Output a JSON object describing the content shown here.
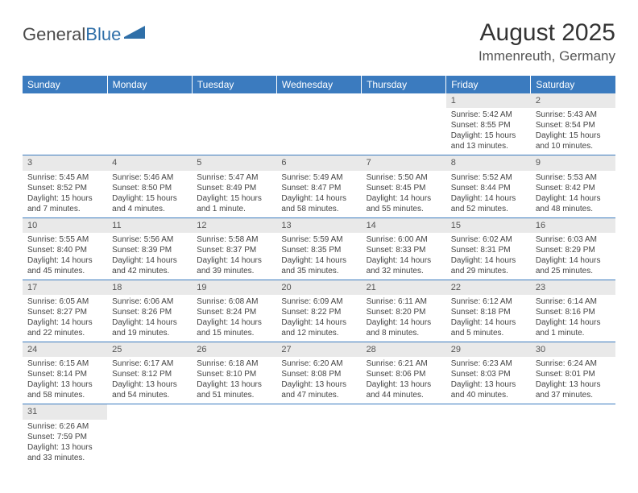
{
  "logo": {
    "text1": "General",
    "text2": "Blue"
  },
  "title": "August 2025",
  "location": "Immenreuth, Germany",
  "colors": {
    "header_bg": "#3b7bbf",
    "header_fg": "#ffffff",
    "daynum_bg": "#e9e9e9",
    "row_border": "#3b7bbf",
    "logo_blue": "#2f6fa8"
  },
  "day_headers": [
    "Sunday",
    "Monday",
    "Tuesday",
    "Wednesday",
    "Thursday",
    "Friday",
    "Saturday"
  ],
  "weeks": [
    [
      null,
      null,
      null,
      null,
      null,
      {
        "n": "1",
        "sr": "Sunrise: 5:42 AM",
        "ss": "Sunset: 8:55 PM",
        "dl": "Daylight: 15 hours and 13 minutes."
      },
      {
        "n": "2",
        "sr": "Sunrise: 5:43 AM",
        "ss": "Sunset: 8:54 PM",
        "dl": "Daylight: 15 hours and 10 minutes."
      }
    ],
    [
      {
        "n": "3",
        "sr": "Sunrise: 5:45 AM",
        "ss": "Sunset: 8:52 PM",
        "dl": "Daylight: 15 hours and 7 minutes."
      },
      {
        "n": "4",
        "sr": "Sunrise: 5:46 AM",
        "ss": "Sunset: 8:50 PM",
        "dl": "Daylight: 15 hours and 4 minutes."
      },
      {
        "n": "5",
        "sr": "Sunrise: 5:47 AM",
        "ss": "Sunset: 8:49 PM",
        "dl": "Daylight: 15 hours and 1 minute."
      },
      {
        "n": "6",
        "sr": "Sunrise: 5:49 AM",
        "ss": "Sunset: 8:47 PM",
        "dl": "Daylight: 14 hours and 58 minutes."
      },
      {
        "n": "7",
        "sr": "Sunrise: 5:50 AM",
        "ss": "Sunset: 8:45 PM",
        "dl": "Daylight: 14 hours and 55 minutes."
      },
      {
        "n": "8",
        "sr": "Sunrise: 5:52 AM",
        "ss": "Sunset: 8:44 PM",
        "dl": "Daylight: 14 hours and 52 minutes."
      },
      {
        "n": "9",
        "sr": "Sunrise: 5:53 AM",
        "ss": "Sunset: 8:42 PM",
        "dl": "Daylight: 14 hours and 48 minutes."
      }
    ],
    [
      {
        "n": "10",
        "sr": "Sunrise: 5:55 AM",
        "ss": "Sunset: 8:40 PM",
        "dl": "Daylight: 14 hours and 45 minutes."
      },
      {
        "n": "11",
        "sr": "Sunrise: 5:56 AM",
        "ss": "Sunset: 8:39 PM",
        "dl": "Daylight: 14 hours and 42 minutes."
      },
      {
        "n": "12",
        "sr": "Sunrise: 5:58 AM",
        "ss": "Sunset: 8:37 PM",
        "dl": "Daylight: 14 hours and 39 minutes."
      },
      {
        "n": "13",
        "sr": "Sunrise: 5:59 AM",
        "ss": "Sunset: 8:35 PM",
        "dl": "Daylight: 14 hours and 35 minutes."
      },
      {
        "n": "14",
        "sr": "Sunrise: 6:00 AM",
        "ss": "Sunset: 8:33 PM",
        "dl": "Daylight: 14 hours and 32 minutes."
      },
      {
        "n": "15",
        "sr": "Sunrise: 6:02 AM",
        "ss": "Sunset: 8:31 PM",
        "dl": "Daylight: 14 hours and 29 minutes."
      },
      {
        "n": "16",
        "sr": "Sunrise: 6:03 AM",
        "ss": "Sunset: 8:29 PM",
        "dl": "Daylight: 14 hours and 25 minutes."
      }
    ],
    [
      {
        "n": "17",
        "sr": "Sunrise: 6:05 AM",
        "ss": "Sunset: 8:27 PM",
        "dl": "Daylight: 14 hours and 22 minutes."
      },
      {
        "n": "18",
        "sr": "Sunrise: 6:06 AM",
        "ss": "Sunset: 8:26 PM",
        "dl": "Daylight: 14 hours and 19 minutes."
      },
      {
        "n": "19",
        "sr": "Sunrise: 6:08 AM",
        "ss": "Sunset: 8:24 PM",
        "dl": "Daylight: 14 hours and 15 minutes."
      },
      {
        "n": "20",
        "sr": "Sunrise: 6:09 AM",
        "ss": "Sunset: 8:22 PM",
        "dl": "Daylight: 14 hours and 12 minutes."
      },
      {
        "n": "21",
        "sr": "Sunrise: 6:11 AM",
        "ss": "Sunset: 8:20 PM",
        "dl": "Daylight: 14 hours and 8 minutes."
      },
      {
        "n": "22",
        "sr": "Sunrise: 6:12 AM",
        "ss": "Sunset: 8:18 PM",
        "dl": "Daylight: 14 hours and 5 minutes."
      },
      {
        "n": "23",
        "sr": "Sunrise: 6:14 AM",
        "ss": "Sunset: 8:16 PM",
        "dl": "Daylight: 14 hours and 1 minute."
      }
    ],
    [
      {
        "n": "24",
        "sr": "Sunrise: 6:15 AM",
        "ss": "Sunset: 8:14 PM",
        "dl": "Daylight: 13 hours and 58 minutes."
      },
      {
        "n": "25",
        "sr": "Sunrise: 6:17 AM",
        "ss": "Sunset: 8:12 PM",
        "dl": "Daylight: 13 hours and 54 minutes."
      },
      {
        "n": "26",
        "sr": "Sunrise: 6:18 AM",
        "ss": "Sunset: 8:10 PM",
        "dl": "Daylight: 13 hours and 51 minutes."
      },
      {
        "n": "27",
        "sr": "Sunrise: 6:20 AM",
        "ss": "Sunset: 8:08 PM",
        "dl": "Daylight: 13 hours and 47 minutes."
      },
      {
        "n": "28",
        "sr": "Sunrise: 6:21 AM",
        "ss": "Sunset: 8:06 PM",
        "dl": "Daylight: 13 hours and 44 minutes."
      },
      {
        "n": "29",
        "sr": "Sunrise: 6:23 AM",
        "ss": "Sunset: 8:03 PM",
        "dl": "Daylight: 13 hours and 40 minutes."
      },
      {
        "n": "30",
        "sr": "Sunrise: 6:24 AM",
        "ss": "Sunset: 8:01 PM",
        "dl": "Daylight: 13 hours and 37 minutes."
      }
    ],
    [
      {
        "n": "31",
        "sr": "Sunrise: 6:26 AM",
        "ss": "Sunset: 7:59 PM",
        "dl": "Daylight: 13 hours and 33 minutes."
      },
      null,
      null,
      null,
      null,
      null,
      null
    ]
  ]
}
